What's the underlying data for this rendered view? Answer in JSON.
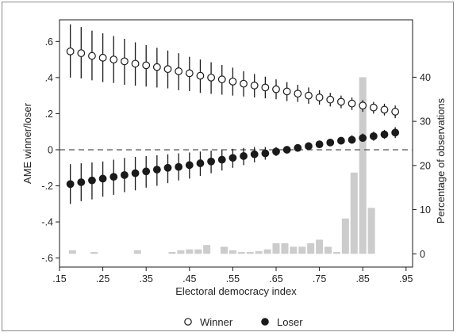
{
  "chart_data": {
    "type": "scatter",
    "title": "",
    "xlabel": "Electoral democracy index",
    "ylabel": "AME winner/loser",
    "ylabel_right": "Percentage of observations",
    "xlim": [
      0.15,
      0.965
    ],
    "ylim": [
      -0.65,
      0.72
    ],
    "y2lim": [
      -3,
      53
    ],
    "x_ticks": [
      0.15,
      0.25,
      0.35,
      0.45,
      0.55,
      0.65,
      0.75,
      0.85,
      0.95
    ],
    "x_tick_labels": [
      ".15",
      ".25",
      ".35",
      ".45",
      ".55",
      ".65",
      ".75",
      ".85",
      ".95"
    ],
    "y_ticks": [
      0.6,
      0.4,
      0.2,
      0,
      -0.2,
      -0.4,
      -0.6
    ],
    "y_tick_labels": [
      ".6",
      ".4",
      ".2",
      "0",
      "-.2",
      "-.4",
      "-.6"
    ],
    "y2_ticks": [
      0,
      10,
      20,
      30,
      40
    ],
    "y2_tick_labels": [
      "0",
      "10",
      "20",
      "30",
      "40"
    ],
    "reference_line": 0,
    "grid": false,
    "legend_position": "bottom",
    "series": [
      {
        "name": "Winner",
        "marker": "hollow-circle",
        "x": [
          0.175,
          0.2,
          0.225,
          0.25,
          0.275,
          0.3,
          0.325,
          0.35,
          0.375,
          0.4,
          0.425,
          0.45,
          0.475,
          0.5,
          0.525,
          0.55,
          0.575,
          0.6,
          0.625,
          0.65,
          0.675,
          0.7,
          0.725,
          0.75,
          0.775,
          0.8,
          0.825,
          0.85,
          0.875,
          0.9,
          0.925
        ],
        "y": [
          0.545,
          0.535,
          0.52,
          0.51,
          0.5,
          0.49,
          0.477,
          0.468,
          0.458,
          0.447,
          0.435,
          0.424,
          0.41,
          0.4,
          0.39,
          0.378,
          0.366,
          0.356,
          0.345,
          0.335,
          0.323,
          0.311,
          0.3,
          0.29,
          0.278,
          0.266,
          0.256,
          0.245,
          0.234,
          0.222,
          0.211
        ],
        "ci_low": [
          0.4,
          0.395,
          0.385,
          0.375,
          0.37,
          0.36,
          0.355,
          0.35,
          0.345,
          0.34,
          0.33,
          0.325,
          0.315,
          0.31,
          0.305,
          0.3,
          0.295,
          0.29,
          0.285,
          0.28,
          0.27,
          0.265,
          0.255,
          0.25,
          0.24,
          0.23,
          0.22,
          0.21,
          0.2,
          0.19,
          0.175
        ],
        "ci_high": [
          0.695,
          0.68,
          0.66,
          0.645,
          0.63,
          0.615,
          0.595,
          0.58,
          0.565,
          0.55,
          0.535,
          0.515,
          0.5,
          0.485,
          0.47,
          0.455,
          0.435,
          0.42,
          0.405,
          0.39,
          0.375,
          0.36,
          0.345,
          0.33,
          0.315,
          0.3,
          0.29,
          0.275,
          0.265,
          0.255,
          0.245
        ]
      },
      {
        "name": "Loser",
        "marker": "filled-circle",
        "x": [
          0.175,
          0.2,
          0.225,
          0.25,
          0.275,
          0.3,
          0.325,
          0.35,
          0.375,
          0.4,
          0.425,
          0.45,
          0.475,
          0.5,
          0.525,
          0.55,
          0.575,
          0.6,
          0.625,
          0.65,
          0.675,
          0.7,
          0.725,
          0.75,
          0.775,
          0.8,
          0.825,
          0.85,
          0.875,
          0.9,
          0.925
        ],
        "y": [
          -0.19,
          -0.18,
          -0.17,
          -0.16,
          -0.15,
          -0.14,
          -0.13,
          -0.12,
          -0.11,
          -0.1,
          -0.095,
          -0.085,
          -0.075,
          -0.065,
          -0.055,
          -0.045,
          -0.035,
          -0.025,
          -0.02,
          -0.01,
          0.0,
          0.01,
          0.02,
          0.03,
          0.04,
          0.05,
          0.055,
          0.065,
          0.075,
          0.085,
          0.095
        ],
        "ci_low": [
          -0.3,
          -0.285,
          -0.275,
          -0.26,
          -0.25,
          -0.235,
          -0.225,
          -0.21,
          -0.2,
          -0.185,
          -0.17,
          -0.16,
          -0.145,
          -0.13,
          -0.115,
          -0.1,
          -0.085,
          -0.07,
          -0.055,
          -0.035,
          -0.02,
          -0.01,
          0.0,
          0.01,
          0.02,
          0.03,
          0.035,
          0.045,
          0.05,
          0.06,
          0.065
        ],
        "ci_high": [
          -0.08,
          -0.075,
          -0.07,
          -0.065,
          -0.055,
          -0.045,
          -0.04,
          -0.035,
          -0.03,
          -0.025,
          -0.02,
          -0.015,
          -0.01,
          -0.005,
          0.0,
          0.005,
          0.01,
          0.015,
          0.015,
          0.015,
          0.02,
          0.03,
          0.04,
          0.05,
          0.06,
          0.07,
          0.08,
          0.09,
          0.1,
          0.11,
          0.125
        ]
      }
    ],
    "histogram": {
      "axis": "right",
      "color": "#cccccc",
      "bin_centers": [
        0.18,
        0.23,
        0.33,
        0.41,
        0.43,
        0.45,
        0.47,
        0.49,
        0.53,
        0.55,
        0.57,
        0.59,
        0.61,
        0.63,
        0.65,
        0.67,
        0.69,
        0.71,
        0.73,
        0.75,
        0.77,
        0.79,
        0.81,
        0.83,
        0.85,
        0.87,
        0.89
      ],
      "values": [
        0.8,
        0.4,
        0.8,
        0.4,
        0.8,
        1.0,
        1.0,
        2.0,
        1.6,
        0.8,
        0.4,
        0.4,
        0.6,
        1.0,
        2.4,
        2.4,
        1.6,
        1.6,
        2.4,
        3.2,
        1.6,
        0.4,
        8.0,
        18.4,
        40.0,
        10.4,
        0
      ]
    }
  },
  "legend": {
    "items": [
      {
        "label": "Winner"
      },
      {
        "label": "Loser"
      }
    ]
  },
  "colors": {
    "marker_fill_winner": "#ffffff",
    "marker_fill_loser": "#1a1a1a",
    "stroke": "#1a1a1a",
    "histogram": "#cccccc",
    "reference_line": "#555555"
  }
}
